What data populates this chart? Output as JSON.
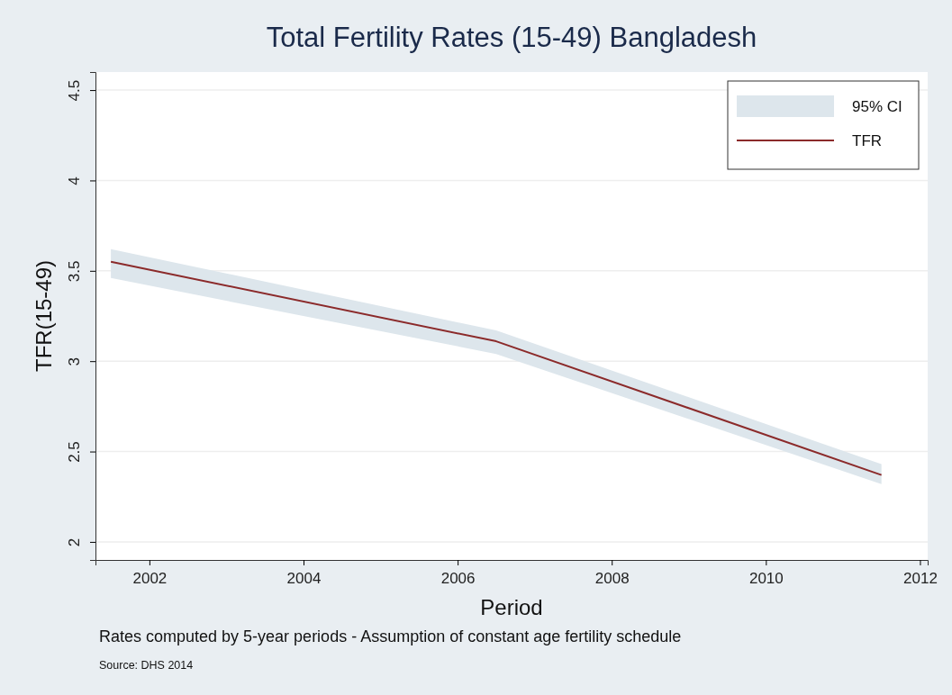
{
  "chart_data": {
    "type": "line",
    "title": "Total Fertility Rates (15-49) Bangladesh",
    "xlabel": "Period",
    "ylabel": "TFR(15-49)",
    "x": [
      2001.5,
      2006.5,
      2011.5
    ],
    "series": [
      {
        "name": "TFR",
        "color": "#8b2a2a",
        "values": [
          3.55,
          3.11,
          2.37
        ],
        "lower": [
          3.46,
          3.04,
          2.32
        ],
        "upper": [
          3.62,
          3.17,
          2.43
        ]
      }
    ],
    "xlim": [
      2001.3,
      2012.1
    ],
    "xticks": [
      2002,
      2004,
      2006,
      2008,
      2010,
      2012
    ],
    "ylim": [
      1.9,
      4.6
    ],
    "yticks": [
      2,
      2.5,
      3,
      3.5,
      4,
      4.5
    ],
    "grid": "y",
    "legend": "top right",
    "line_style": "solid",
    "annotations": [
      "95% CI",
      "Rates computed by 5-year periods - Assumption of constant age fertility schedule",
      "Source: DHS 2014"
    ]
  }
}
